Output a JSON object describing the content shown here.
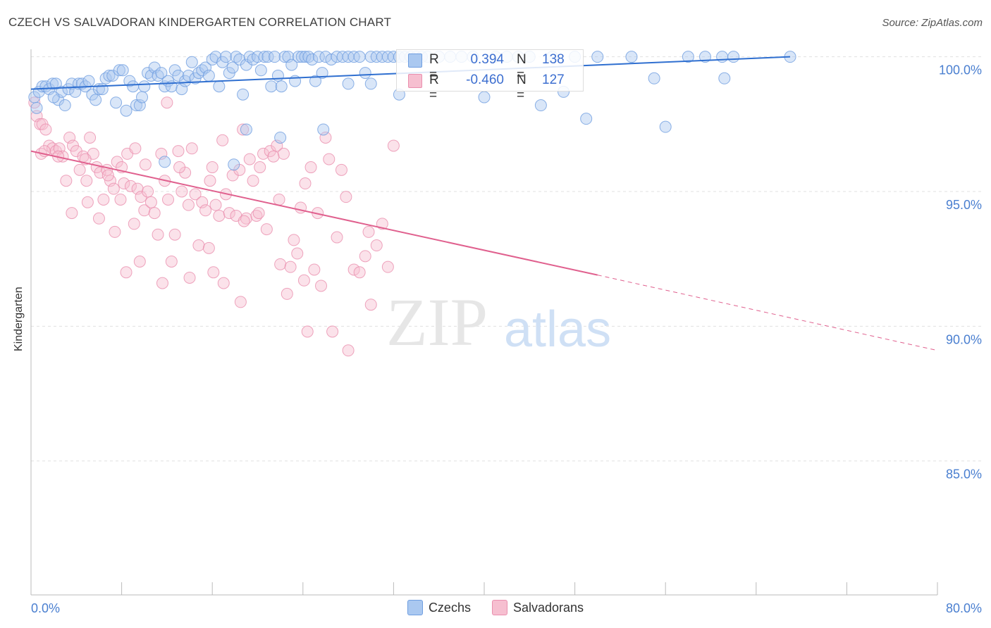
{
  "header": {
    "title": "CZECH VS SALVADORAN KINDERGARTEN CORRELATION CHART",
    "source": "Source: ZipAtlas.com"
  },
  "watermark": {
    "zip": "ZIP",
    "atlas": "atlas"
  },
  "stats_box": {
    "czechs": {
      "r_label": "R =",
      "r_value": " 0.394",
      "n_label": "N =",
      "n_value": "138"
    },
    "salvadorans": {
      "r_label": "R =",
      "r_value": "-0.460",
      "n_label": "N =",
      "n_value": "127"
    }
  },
  "legend": {
    "czechs": "Czechs",
    "salvadorans": "Salvadorans"
  },
  "colors": {
    "czechs_fill": "#aac8f0",
    "czechs_stroke": "#6f9ee0",
    "czechs_line": "#2f6fd0",
    "salvadorans_fill": "#f6bfd0",
    "salvadorans_stroke": "#ea8fae",
    "salvadorans_line": "#e0608e",
    "tick_label": "#4a7fd0",
    "grid": "#e0e0e0"
  },
  "chart_data": {
    "type": "scatter",
    "title": "CZECH VS SALVADORAN KINDERGARTEN CORRELATION CHART",
    "xlabel": "",
    "ylabel": "Kindergarten",
    "xlim": [
      0,
      80
    ],
    "ylim": [
      80.5,
      100.8
    ],
    "x_tick_labels": [
      "0.0%",
      "80.0%"
    ],
    "y_ticks": [
      100,
      95,
      90,
      85
    ],
    "y_tick_labels": [
      "100.0%",
      "95.0%",
      "90.0%",
      "85.0%"
    ],
    "grid": "horizontal dashed",
    "legend_position": "bottom",
    "series": [
      {
        "name": "Czechs",
        "r": 0.394,
        "n": 138,
        "trend": {
          "x0": 0,
          "y0": 98.8,
          "x1": 67,
          "y1": 100.0
        },
        "points": [
          [
            0.3,
            98.5
          ],
          [
            0.5,
            98.1
          ],
          [
            0.7,
            98.7
          ],
          [
            1.0,
            98.9
          ],
          [
            1.3,
            98.9
          ],
          [
            1.6,
            98.8
          ],
          [
            1.9,
            99.0
          ],
          [
            2.2,
            99.0
          ],
          [
            2.4,
            98.4
          ],
          [
            2.7,
            98.7
          ],
          [
            3.0,
            98.2
          ],
          [
            3.3,
            98.8
          ],
          [
            3.6,
            99.0
          ],
          [
            3.9,
            98.7
          ],
          [
            4.2,
            99.0
          ],
          [
            4.5,
            99.0
          ],
          [
            4.8,
            98.9
          ],
          [
            5.1,
            99.1
          ],
          [
            5.4,
            98.6
          ],
          [
            5.7,
            98.4
          ],
          [
            6.0,
            98.8
          ],
          [
            6.3,
            98.8
          ],
          [
            6.6,
            99.2
          ],
          [
            6.9,
            99.3
          ],
          [
            7.2,
            99.3
          ],
          [
            7.5,
            98.3
          ],
          [
            7.8,
            99.5
          ],
          [
            8.1,
            99.5
          ],
          [
            8.4,
            98.0
          ],
          [
            8.7,
            99.1
          ],
          [
            9.0,
            98.9
          ],
          [
            9.3,
            98.2
          ],
          [
            9.6,
            98.2
          ],
          [
            10.0,
            98.9
          ],
          [
            10.3,
            99.4
          ],
          [
            10.6,
            99.3
          ],
          [
            10.9,
            99.6
          ],
          [
            11.2,
            99.3
          ],
          [
            11.5,
            99.4
          ],
          [
            11.8,
            98.9
          ],
          [
            12.1,
            99.1
          ],
          [
            12.4,
            98.9
          ],
          [
            12.7,
            99.5
          ],
          [
            13.0,
            99.3
          ],
          [
            13.3,
            98.8
          ],
          [
            13.6,
            99.1
          ],
          [
            13.9,
            99.3
          ],
          [
            14.2,
            99.8
          ],
          [
            14.5,
            99.2
          ],
          [
            14.8,
            99.4
          ],
          [
            15.1,
            99.5
          ],
          [
            15.4,
            99.6
          ],
          [
            15.7,
            99.3
          ],
          [
            16.0,
            99.9
          ],
          [
            16.3,
            100.0
          ],
          [
            16.6,
            98.9
          ],
          [
            16.9,
            99.8
          ],
          [
            17.2,
            100.0
          ],
          [
            17.5,
            99.4
          ],
          [
            17.8,
            99.6
          ],
          [
            18.1,
            100.0
          ],
          [
            18.4,
            99.9
          ],
          [
            18.7,
            98.6
          ],
          [
            19.0,
            99.7
          ],
          [
            19.3,
            100.0
          ],
          [
            19.6,
            99.9
          ],
          [
            20.0,
            100.0
          ],
          [
            20.3,
            99.5
          ],
          [
            20.6,
            100.0
          ],
          [
            20.9,
            100.0
          ],
          [
            21.2,
            98.9
          ],
          [
            21.5,
            100.0
          ],
          [
            21.8,
            99.3
          ],
          [
            22.1,
            98.9
          ],
          [
            22.4,
            100.0
          ],
          [
            22.7,
            100.0
          ],
          [
            23.0,
            99.7
          ],
          [
            23.3,
            99.1
          ],
          [
            23.6,
            100.0
          ],
          [
            23.9,
            100.0
          ],
          [
            24.2,
            100.0
          ],
          [
            24.5,
            100.0
          ],
          [
            24.8,
            99.9
          ],
          [
            25.1,
            99.1
          ],
          [
            25.4,
            100.0
          ],
          [
            25.7,
            99.4
          ],
          [
            26.0,
            100.0
          ],
          [
            26.5,
            99.9
          ],
          [
            27.0,
            100.0
          ],
          [
            27.5,
            100.0
          ],
          [
            28.0,
            100.0
          ],
          [
            28.5,
            100.0
          ],
          [
            29.0,
            100.0
          ],
          [
            29.5,
            99.4
          ],
          [
            30.0,
            100.0
          ],
          [
            30.5,
            100.0
          ],
          [
            31.0,
            100.0
          ],
          [
            31.5,
            100.0
          ],
          [
            32.0,
            100.0
          ],
          [
            32.5,
            100.0
          ],
          [
            33.0,
            100.0
          ],
          [
            33.5,
            100.0
          ],
          [
            34.0,
            100.0
          ],
          [
            34.5,
            100.0
          ],
          [
            35.0,
            100.0
          ],
          [
            36.0,
            100.0
          ],
          [
            37.0,
            100.0
          ],
          [
            38.0,
            100.0
          ],
          [
            39.0,
            100.0
          ],
          [
            40.0,
            98.5
          ],
          [
            41.0,
            100.0
          ],
          [
            42.0,
            100.0
          ],
          [
            43.0,
            100.0
          ],
          [
            44.0,
            100.0
          ],
          [
            45.0,
            98.2
          ],
          [
            46.0,
            100.0
          ],
          [
            47.0,
            98.7
          ],
          [
            48.0,
            100.0
          ],
          [
            49.0,
            97.7
          ],
          [
            50.0,
            100.0
          ],
          [
            53.0,
            100.0
          ],
          [
            55.0,
            99.2
          ],
          [
            56.0,
            97.4
          ],
          [
            58.0,
            100.0
          ],
          [
            59.5,
            100.0
          ],
          [
            61.0,
            100.0
          ],
          [
            61.2,
            99.2
          ],
          [
            62.0,
            100.0
          ],
          [
            67.0,
            100.0
          ],
          [
            11.8,
            96.1
          ],
          [
            17.9,
            96.0
          ],
          [
            19.0,
            97.3
          ],
          [
            22.0,
            97.0
          ],
          [
            25.8,
            97.3
          ],
          [
            32.5,
            98.6
          ],
          [
            28.0,
            99.0
          ],
          [
            30.0,
            99.0
          ],
          [
            9.8,
            98.5
          ],
          [
            2.0,
            98.5
          ]
        ]
      },
      {
        "name": "Salvadorans",
        "r": -0.46,
        "n": 127,
        "trend": {
          "x0": 0,
          "y0": 96.5,
          "x1": 50,
          "y1": 91.9
        },
        "trend_dashed": {
          "x0": 50,
          "y0": 91.9,
          "x1": 80,
          "y1": 89.1
        },
        "points": [
          [
            0.3,
            98.3
          ],
          [
            0.5,
            97.8
          ],
          [
            0.8,
            97.5
          ],
          [
            1.0,
            97.5
          ],
          [
            1.3,
            97.3
          ],
          [
            1.6,
            96.7
          ],
          [
            1.9,
            96.6
          ],
          [
            2.2,
            96.5
          ],
          [
            2.5,
            96.6
          ],
          [
            2.8,
            96.3
          ],
          [
            3.1,
            95.4
          ],
          [
            3.4,
            97.0
          ],
          [
            3.7,
            96.7
          ],
          [
            4.0,
            96.5
          ],
          [
            4.3,
            95.8
          ],
          [
            4.6,
            96.3
          ],
          [
            4.9,
            95.4
          ],
          [
            5.2,
            97.0
          ],
          [
            5.5,
            96.4
          ],
          [
            5.8,
            95.9
          ],
          [
            6.1,
            95.7
          ],
          [
            6.4,
            94.7
          ],
          [
            6.7,
            95.8
          ],
          [
            7.0,
            95.4
          ],
          [
            7.3,
            95.1
          ],
          [
            7.6,
            96.1
          ],
          [
            7.9,
            94.7
          ],
          [
            8.2,
            95.3
          ],
          [
            8.5,
            96.4
          ],
          [
            8.8,
            95.2
          ],
          [
            9.1,
            93.8
          ],
          [
            9.4,
            95.1
          ],
          [
            9.7,
            94.8
          ],
          [
            10.0,
            94.3
          ],
          [
            10.3,
            95.0
          ],
          [
            10.6,
            94.6
          ],
          [
            10.9,
            94.2
          ],
          [
            11.2,
            93.4
          ],
          [
            11.5,
            96.4
          ],
          [
            11.8,
            95.4
          ],
          [
            12.1,
            94.7
          ],
          [
            12.4,
            92.4
          ],
          [
            12.7,
            93.4
          ],
          [
            13.0,
            96.5
          ],
          [
            13.3,
            95.0
          ],
          [
            13.6,
            95.7
          ],
          [
            13.9,
            94.5
          ],
          [
            14.2,
            96.6
          ],
          [
            14.5,
            94.9
          ],
          [
            14.8,
            93.0
          ],
          [
            15.1,
            94.6
          ],
          [
            15.4,
            94.3
          ],
          [
            15.7,
            92.9
          ],
          [
            16.0,
            95.9
          ],
          [
            16.3,
            94.5
          ],
          [
            16.6,
            94.1
          ],
          [
            16.9,
            96.9
          ],
          [
            17.2,
            94.9
          ],
          [
            17.5,
            94.2
          ],
          [
            17.8,
            95.6
          ],
          [
            18.1,
            94.1
          ],
          [
            18.4,
            95.8
          ],
          [
            18.7,
            97.3
          ],
          [
            19.0,
            94.0
          ],
          [
            19.3,
            96.2
          ],
          [
            19.6,
            95.4
          ],
          [
            19.9,
            94.1
          ],
          [
            20.2,
            95.9
          ],
          [
            20.5,
            96.4
          ],
          [
            20.8,
            93.6
          ],
          [
            21.1,
            96.5
          ],
          [
            21.4,
            96.3
          ],
          [
            21.7,
            96.7
          ],
          [
            22.0,
            92.3
          ],
          [
            22.3,
            96.4
          ],
          [
            22.6,
            91.2
          ],
          [
            22.9,
            92.2
          ],
          [
            23.2,
            93.2
          ],
          [
            23.5,
            92.7
          ],
          [
            23.8,
            94.4
          ],
          [
            24.1,
            91.7
          ],
          [
            24.4,
            89.8
          ],
          [
            24.7,
            95.9
          ],
          [
            25.0,
            92.1
          ],
          [
            25.3,
            94.2
          ],
          [
            25.6,
            91.5
          ],
          [
            26.0,
            97.0
          ],
          [
            26.6,
            89.8
          ],
          [
            27.0,
            93.3
          ],
          [
            27.4,
            95.8
          ],
          [
            28.0,
            89.1
          ],
          [
            28.5,
            92.1
          ],
          [
            29.0,
            92.0
          ],
          [
            29.5,
            92.6
          ],
          [
            30.0,
            90.8
          ],
          [
            30.5,
            93.0
          ],
          [
            31.0,
            93.8
          ],
          [
            32.0,
            96.7
          ],
          [
            8.4,
            92.0
          ],
          [
            9.6,
            92.4
          ],
          [
            11.6,
            91.6
          ],
          [
            14.0,
            91.8
          ],
          [
            16.1,
            92.0
          ],
          [
            17.0,
            91.6
          ],
          [
            18.5,
            90.9
          ],
          [
            6.0,
            94.0
          ],
          [
            5.0,
            94.6
          ],
          [
            3.6,
            94.2
          ],
          [
            7.4,
            93.5
          ],
          [
            13.1,
            95.9
          ],
          [
            15.8,
            95.4
          ],
          [
            0.9,
            96.4
          ],
          [
            1.2,
            96.5
          ],
          [
            2.4,
            96.3
          ],
          [
            4.8,
            96.2
          ],
          [
            6.8,
            95.6
          ],
          [
            8.0,
            95.9
          ],
          [
            10.1,
            96.0
          ],
          [
            12.0,
            98.3
          ],
          [
            18.8,
            93.9
          ],
          [
            20.1,
            94.2
          ],
          [
            21.9,
            94.7
          ],
          [
            24.2,
            95.3
          ],
          [
            26.3,
            96.2
          ],
          [
            27.8,
            94.8
          ],
          [
            29.8,
            93.5
          ],
          [
            31.5,
            92.2
          ],
          [
            9.2,
            96.6
          ]
        ]
      }
    ]
  }
}
